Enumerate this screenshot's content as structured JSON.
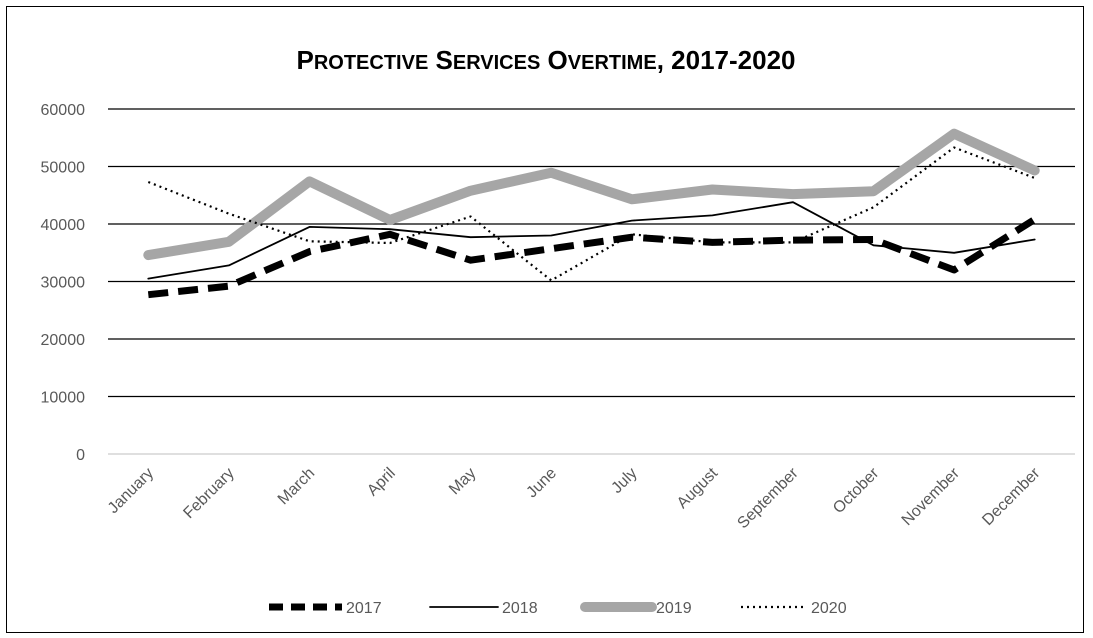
{
  "chart_data": {
    "type": "line",
    "title": "Protective Services Overtime, 2017-2020",
    "xlabel": "",
    "ylabel": "",
    "ylim": [
      0,
      60000
    ],
    "yticks": [
      0,
      10000,
      20000,
      30000,
      40000,
      50000,
      60000
    ],
    "grid": true,
    "legend": "bottom",
    "categories": [
      "January",
      "February",
      "March",
      "April",
      "May",
      "June",
      "July",
      "August",
      "September",
      "October",
      "November",
      "December"
    ],
    "series": [
      {
        "name": "2017",
        "style": "dashed-thick",
        "color": "#000000",
        "values": [
          27700,
          29200,
          35200,
          38200,
          33700,
          35700,
          37700,
          36800,
          37200,
          37300,
          32000,
          40800
        ]
      },
      {
        "name": "2018",
        "style": "solid-thin",
        "color": "#000000",
        "values": [
          30500,
          32800,
          39500,
          39100,
          37700,
          38000,
          40600,
          41500,
          43800,
          36300,
          35000,
          37300
        ]
      },
      {
        "name": "2019",
        "style": "solid-thick",
        "color": "#a6a6a6",
        "values": [
          34600,
          36900,
          47400,
          40700,
          45800,
          48900,
          44300,
          46000,
          45200,
          45700,
          55700,
          49300
        ]
      },
      {
        "name": "2020",
        "style": "dotted",
        "color": "#000000",
        "values": [
          47300,
          41800,
          37000,
          36700,
          41300,
          30200,
          38200,
          36800,
          36800,
          42900,
          53300,
          48000
        ]
      }
    ]
  }
}
